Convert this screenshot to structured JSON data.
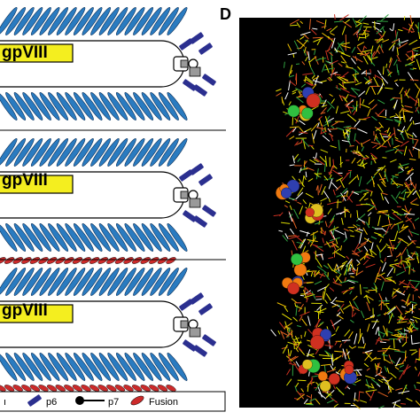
{
  "panel_letter": "D",
  "gene_label": "gpVIII",
  "legend": {
    "p6": "p6",
    "p7": "p7",
    "fusion": "Fusion"
  },
  "colors": {
    "coat_blue": "#2a7bc0",
    "fusion_red": "#cc2a2a",
    "p6_navy": "#2b2f8f",
    "label_yellow": "#f4ee1f",
    "sim_background": "#000000"
  }
}
